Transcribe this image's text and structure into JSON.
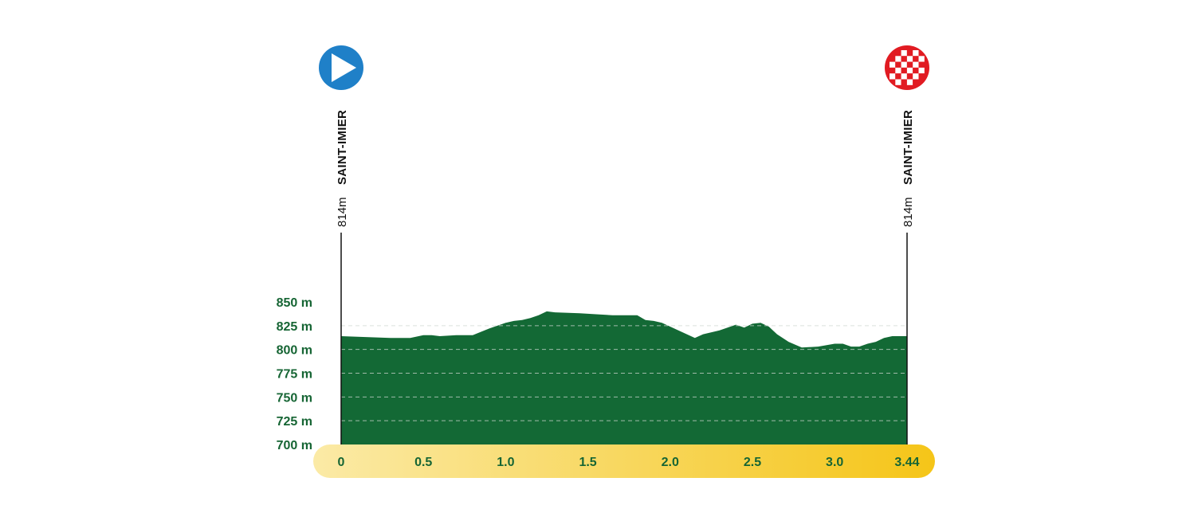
{
  "chart_data": {
    "type": "area",
    "title": "",
    "xlabel": "",
    "ylabel": "",
    "xlim": [
      0,
      3.44
    ],
    "ylim": [
      700,
      850
    ],
    "x_ticks": [
      "0",
      "0.5",
      "1.0",
      "1.5",
      "2.0",
      "2.5",
      "3.0",
      "3.44"
    ],
    "y_ticks": [
      "850 m",
      "825 m",
      "800 m",
      "775 m",
      "750 m",
      "725 m",
      "700 m"
    ],
    "grid": true,
    "colors": {
      "area": "#136935",
      "grid": "#cfd8d2",
      "axis_start": "#fbeaa6",
      "axis_end": "#f5c518",
      "start_marker": "#1f80c8",
      "finish_marker": "#e11b22"
    },
    "series": [
      {
        "x": [
          0,
          0.3,
          0.42,
          0.5,
          0.55,
          0.6,
          0.7,
          0.8,
          0.9,
          1.0,
          1.05,
          1.1,
          1.15,
          1.2,
          1.25,
          1.3,
          1.45,
          1.55,
          1.65,
          1.8,
          1.85,
          1.9,
          1.95,
          2.05,
          2.15,
          2.2,
          2.3,
          2.4,
          2.45,
          2.5,
          2.55,
          2.6,
          2.65,
          2.72,
          2.8,
          2.9,
          3.0,
          3.05,
          3.1,
          3.15,
          3.2,
          3.25,
          3.3,
          3.35,
          3.44
        ],
        "y": [
          814,
          812,
          812,
          815,
          815,
          814,
          815,
          815,
          822,
          828,
          830,
          831,
          833,
          836,
          840,
          839,
          838,
          837,
          836,
          836,
          831,
          830,
          828,
          820,
          812,
          816,
          820,
          826,
          823,
          827,
          828,
          824,
          816,
          808,
          802,
          803,
          806,
          806,
          803,
          803,
          806,
          808,
          812,
          814,
          814
        ]
      }
    ],
    "start": {
      "km": 0,
      "altitude": "814m",
      "place": "SAINT-IMIER"
    },
    "finish": {
      "km": 3.44,
      "altitude": "814m",
      "place": "SAINT-IMIER"
    }
  }
}
